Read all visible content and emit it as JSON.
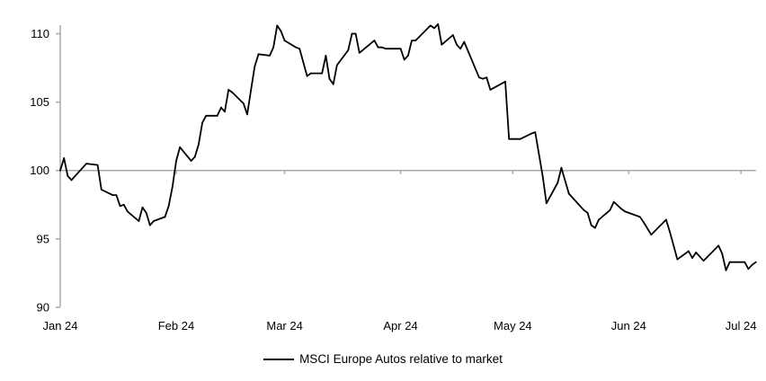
{
  "chart_data": {
    "type": "line",
    "title": "",
    "xlabel": "",
    "ylabel": "",
    "ylim": [
      90,
      110
    ],
    "yticks": [
      90,
      95,
      100,
      105,
      110
    ],
    "xlim": [
      "2024-01-01",
      "2024-07-05"
    ],
    "xticks": [
      {
        "date": "2024-01-01",
        "label": "Jan 24"
      },
      {
        "date": "2024-02-01",
        "label": "Feb 24"
      },
      {
        "date": "2024-03-01",
        "label": "Mar 24"
      },
      {
        "date": "2024-04-01",
        "label": "Apr 24"
      },
      {
        "date": "2024-05-01",
        "label": "May 24"
      },
      {
        "date": "2024-06-01",
        "label": "Jun 24"
      },
      {
        "date": "2024-07-01",
        "label": "Jul 24"
      }
    ],
    "reference_line": 100,
    "grid": false,
    "legend_position": "bottom",
    "series": [
      {
        "name": "MSCI Europe Autos relative to market",
        "color": "#000000",
        "points": [
          [
            "2024-01-01",
            100.0
          ],
          [
            "2024-01-02",
            100.9
          ],
          [
            "2024-01-03",
            99.6
          ],
          [
            "2024-01-04",
            99.3
          ],
          [
            "2024-01-05",
            99.6
          ],
          [
            "2024-01-08",
            100.5
          ],
          [
            "2024-01-11",
            100.4
          ],
          [
            "2024-01-12",
            98.6
          ],
          [
            "2024-01-15",
            98.2
          ],
          [
            "2024-01-16",
            98.2
          ],
          [
            "2024-01-17",
            97.4
          ],
          [
            "2024-01-18",
            97.5
          ],
          [
            "2024-01-19",
            97.0
          ],
          [
            "2024-01-22",
            96.3
          ],
          [
            "2024-01-23",
            97.3
          ],
          [
            "2024-01-24",
            96.9
          ],
          [
            "2024-01-25",
            96.0
          ],
          [
            "2024-01-26",
            96.3
          ],
          [
            "2024-01-29",
            96.6
          ],
          [
            "2024-01-30",
            97.4
          ],
          [
            "2024-01-31",
            98.8
          ],
          [
            "2024-02-01",
            100.7
          ],
          [
            "2024-02-02",
            101.7
          ],
          [
            "2024-02-05",
            100.7
          ],
          [
            "2024-02-06",
            101.0
          ],
          [
            "2024-02-07",
            101.9
          ],
          [
            "2024-02-08",
            103.5
          ],
          [
            "2024-02-09",
            104.0
          ],
          [
            "2024-02-12",
            104.0
          ],
          [
            "2024-02-13",
            104.6
          ],
          [
            "2024-02-14",
            104.3
          ],
          [
            "2024-02-15",
            105.9
          ],
          [
            "2024-02-16",
            105.7
          ],
          [
            "2024-02-19",
            104.9
          ],
          [
            "2024-02-20",
            104.1
          ],
          [
            "2024-02-21",
            105.9
          ],
          [
            "2024-02-22",
            107.6
          ],
          [
            "2024-02-23",
            108.5
          ],
          [
            "2024-02-26",
            108.4
          ],
          [
            "2024-02-27",
            109.0
          ],
          [
            "2024-02-28",
            110.6
          ],
          [
            "2024-02-29",
            110.2
          ],
          [
            "2024-03-01",
            109.5
          ],
          [
            "2024-03-04",
            109.0
          ],
          [
            "2024-03-05",
            108.9
          ],
          [
            "2024-03-07",
            106.9
          ],
          [
            "2024-03-08",
            107.1
          ],
          [
            "2024-03-11",
            107.1
          ],
          [
            "2024-03-12",
            108.4
          ],
          [
            "2024-03-13",
            106.7
          ],
          [
            "2024-03-14",
            106.3
          ],
          [
            "2024-03-15",
            107.7
          ],
          [
            "2024-03-18",
            108.8
          ],
          [
            "2024-03-19",
            110.0
          ],
          [
            "2024-03-20",
            110.0
          ],
          [
            "2024-03-21",
            108.6
          ],
          [
            "2024-03-25",
            109.5
          ],
          [
            "2024-03-26",
            109.0
          ],
          [
            "2024-03-27",
            109.0
          ],
          [
            "2024-03-28",
            108.9
          ],
          [
            "2024-04-01",
            108.9
          ],
          [
            "2024-04-02",
            108.1
          ],
          [
            "2024-04-03",
            108.4
          ],
          [
            "2024-04-04",
            109.5
          ],
          [
            "2024-04-05",
            109.5
          ],
          [
            "2024-04-09",
            110.6
          ],
          [
            "2024-04-10",
            110.4
          ],
          [
            "2024-04-11",
            110.7
          ],
          [
            "2024-04-12",
            109.2
          ],
          [
            "2024-04-15",
            109.9
          ],
          [
            "2024-04-16",
            109.2
          ],
          [
            "2024-04-17",
            108.9
          ],
          [
            "2024-04-18",
            109.4
          ],
          [
            "2024-04-22",
            106.8
          ],
          [
            "2024-04-23",
            106.7
          ],
          [
            "2024-04-24",
            106.8
          ],
          [
            "2024-04-25",
            105.9
          ],
          [
            "2024-04-29",
            106.5
          ],
          [
            "2024-04-30",
            102.3
          ],
          [
            "2024-05-02",
            102.3
          ],
          [
            "2024-05-03",
            102.3
          ],
          [
            "2024-05-06",
            102.7
          ],
          [
            "2024-05-07",
            102.8
          ],
          [
            "2024-05-09",
            99.6
          ],
          [
            "2024-05-10",
            97.6
          ],
          [
            "2024-05-13",
            99.1
          ],
          [
            "2024-05-14",
            100.2
          ],
          [
            "2024-05-16",
            98.3
          ],
          [
            "2024-05-17",
            98.0
          ],
          [
            "2024-05-20",
            97.1
          ],
          [
            "2024-05-21",
            96.9
          ],
          [
            "2024-05-22",
            96.0
          ],
          [
            "2024-05-23",
            95.8
          ],
          [
            "2024-05-24",
            96.4
          ],
          [
            "2024-05-27",
            97.1
          ],
          [
            "2024-05-28",
            97.7
          ],
          [
            "2024-05-30",
            97.2
          ],
          [
            "2024-05-31",
            97.0
          ],
          [
            "2024-06-04",
            96.6
          ],
          [
            "2024-06-05",
            96.2
          ],
          [
            "2024-06-07",
            95.3
          ],
          [
            "2024-06-11",
            96.4
          ],
          [
            "2024-06-12",
            95.5
          ],
          [
            "2024-06-14",
            93.5
          ],
          [
            "2024-06-17",
            94.1
          ],
          [
            "2024-06-18",
            93.6
          ],
          [
            "2024-06-19",
            94.0
          ],
          [
            "2024-06-21",
            93.4
          ],
          [
            "2024-06-25",
            94.5
          ],
          [
            "2024-06-26",
            93.9
          ],
          [
            "2024-06-27",
            92.7
          ],
          [
            "2024-06-28",
            93.3
          ],
          [
            "2024-07-02",
            93.3
          ],
          [
            "2024-07-03",
            92.8
          ],
          [
            "2024-07-04",
            93.1
          ],
          [
            "2024-07-05",
            93.3
          ]
        ]
      }
    ]
  }
}
